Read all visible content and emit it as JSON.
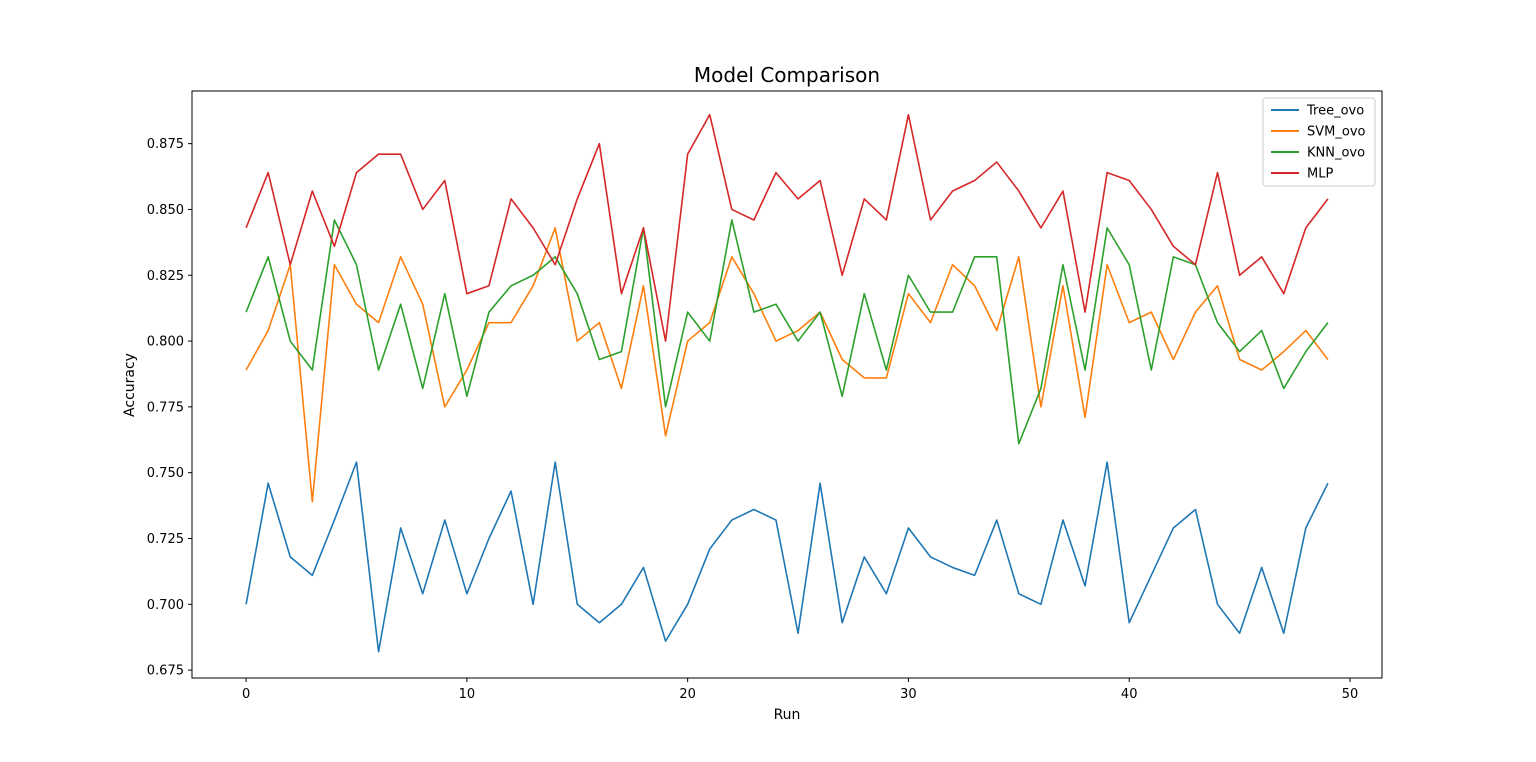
{
  "chart_data": {
    "type": "line",
    "title": "Model Comparison",
    "xlabel": "Run",
    "ylabel": "Accuracy",
    "xlim": [
      -2.45,
      51.45
    ],
    "ylim": [
      0.672,
      0.895
    ],
    "xticks": [
      0,
      10,
      20,
      30,
      40,
      50
    ],
    "yticks": [
      0.675,
      0.7,
      0.725,
      0.75,
      0.775,
      0.8,
      0.825,
      0.85,
      0.875
    ],
    "ytick_labels": [
      "0.675",
      "0.700",
      "0.725",
      "0.750",
      "0.775",
      "0.800",
      "0.825",
      "0.850",
      "0.875"
    ],
    "legend_position": "top-right",
    "grid": false,
    "x": [
      0,
      1,
      2,
      3,
      4,
      5,
      6,
      7,
      8,
      9,
      10,
      11,
      12,
      13,
      14,
      15,
      16,
      17,
      18,
      19,
      20,
      21,
      22,
      23,
      24,
      25,
      26,
      27,
      28,
      29,
      30,
      31,
      32,
      33,
      34,
      35,
      36,
      37,
      38,
      39,
      40,
      41,
      42,
      43,
      44,
      45,
      46,
      47,
      48,
      49
    ],
    "series": [
      {
        "name": "Tree_ovo",
        "color": "#1f77b4",
        "values": [
          0.7,
          0.746,
          0.718,
          0.711,
          0.732,
          0.754,
          0.682,
          0.729,
          0.704,
          0.732,
          0.704,
          0.725,
          0.743,
          0.7,
          0.754,
          0.7,
          0.693,
          0.7,
          0.714,
          0.686,
          0.7,
          0.721,
          0.732,
          0.736,
          0.732,
          0.689,
          0.746,
          0.693,
          0.718,
          0.704,
          0.729,
          0.718,
          0.714,
          0.711,
          0.732,
          0.704,
          0.7,
          0.732,
          0.707,
          0.754,
          0.693,
          0.711,
          0.729,
          0.736,
          0.7,
          0.689,
          0.714,
          0.689,
          0.729,
          0.746
        ]
      },
      {
        "name": "SVM_ovo",
        "color": "#ff7f0e",
        "values": [
          0.789,
          0.804,
          0.829,
          0.739,
          0.829,
          0.814,
          0.807,
          0.832,
          0.814,
          0.775,
          0.789,
          0.807,
          0.807,
          0.821,
          0.843,
          0.8,
          0.807,
          0.782,
          0.821,
          0.764,
          0.8,
          0.807,
          0.832,
          0.818,
          0.8,
          0.804,
          0.811,
          0.793,
          0.786,
          0.786,
          0.818,
          0.807,
          0.829,
          0.821,
          0.804,
          0.832,
          0.775,
          0.821,
          0.771,
          0.829,
          0.807,
          0.811,
          0.793,
          0.811,
          0.821,
          0.793,
          0.789,
          0.796,
          0.804,
          0.793
        ]
      },
      {
        "name": "KNN_ovo",
        "color": "#2ca02c",
        "values": [
          0.811,
          0.832,
          0.8,
          0.789,
          0.846,
          0.829,
          0.789,
          0.814,
          0.782,
          0.818,
          0.779,
          0.811,
          0.821,
          0.825,
          0.832,
          0.818,
          0.793,
          0.796,
          0.843,
          0.775,
          0.811,
          0.8,
          0.846,
          0.811,
          0.814,
          0.8,
          0.811,
          0.779,
          0.818,
          0.789,
          0.825,
          0.811,
          0.811,
          0.832,
          0.832,
          0.761,
          0.782,
          0.829,
          0.789,
          0.843,
          0.829,
          0.789,
          0.832,
          0.829,
          0.807,
          0.796,
          0.804,
          0.782,
          0.796,
          0.807
        ]
      },
      {
        "name": "MLP",
        "color": "#d62728",
        "values": [
          0.843,
          0.864,
          0.829,
          0.857,
          0.836,
          0.864,
          0.871,
          0.871,
          0.85,
          0.861,
          0.818,
          0.821,
          0.854,
          0.843,
          0.829,
          0.854,
          0.875,
          0.818,
          0.843,
          0.8,
          0.871,
          0.886,
          0.85,
          0.846,
          0.864,
          0.854,
          0.861,
          0.825,
          0.854,
          0.846,
          0.886,
          0.846,
          0.857,
          0.861,
          0.868,
          0.857,
          0.843,
          0.857,
          0.811,
          0.864,
          0.861,
          0.85,
          0.836,
          0.829,
          0.864,
          0.825,
          0.832,
          0.818,
          0.843,
          0.854
        ]
      }
    ]
  }
}
